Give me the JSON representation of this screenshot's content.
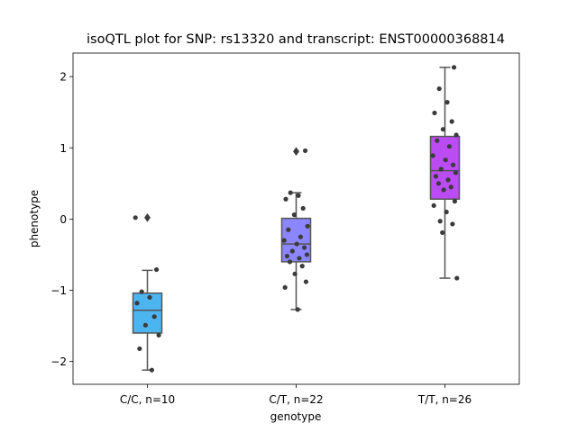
{
  "chart_data": {
    "type": "box",
    "title": "isoQTL plot for SNP: rs13320 and transcript: ENST00000368814",
    "xlabel": "genotype",
    "ylabel": "phenotype",
    "ylim": [
      -2.32,
      2.33
    ],
    "yticks": [
      -2,
      -1,
      0,
      1,
      2
    ],
    "ytick_labels": [
      "−2",
      "−1",
      "0",
      "1",
      "2"
    ],
    "grid": false,
    "categories": [
      "C/C, n=10",
      "C/T, n=22",
      "T/T, n=26"
    ],
    "colors": [
      "#4cb5f0",
      "#8c86fc",
      "#bb4bf2"
    ],
    "box_edge_color": "#555555",
    "point_color": "#3b3b3b",
    "boxes": [
      {
        "category": "C/C, n=10",
        "q1": -1.6,
        "median": -1.28,
        "q3": -1.04,
        "whisker_low": -2.12,
        "whisker_high": -0.72,
        "outliers": [
          0.02
        ],
        "points": [
          -0.71,
          -1.02,
          -1.1,
          -1.18,
          -1.37,
          -1.49,
          -1.63,
          -1.82,
          -2.12,
          0.02
        ]
      },
      {
        "category": "C/T, n=22",
        "q1": -0.6,
        "median": -0.35,
        "q3": 0.01,
        "whisker_low": -1.27,
        "whisker_high": 0.37,
        "outliers": [
          0.95
        ],
        "points": [
          0.96,
          0.37,
          0.33,
          0.28,
          0.15,
          0.06,
          -0.1,
          -0.15,
          -0.25,
          -0.3,
          -0.35,
          -0.4,
          -0.45,
          -0.5,
          -0.52,
          -0.55,
          -0.6,
          -0.66,
          -0.77,
          -0.88,
          -0.96,
          -1.27
        ]
      },
      {
        "category": "T/T, n=26",
        "q1": 0.28,
        "median": 0.68,
        "q3": 1.16,
        "whisker_low": -0.83,
        "whisker_high": 2.13,
        "outliers": [],
        "points": [
          2.13,
          1.83,
          1.64,
          1.49,
          1.37,
          1.26,
          1.18,
          1.1,
          1.02,
          0.89,
          0.83,
          0.76,
          0.7,
          0.65,
          0.6,
          0.55,
          0.5,
          0.45,
          0.41,
          0.25,
          0.19,
          0.1,
          -0.03,
          -0.07,
          -0.19,
          -0.83
        ]
      }
    ]
  }
}
